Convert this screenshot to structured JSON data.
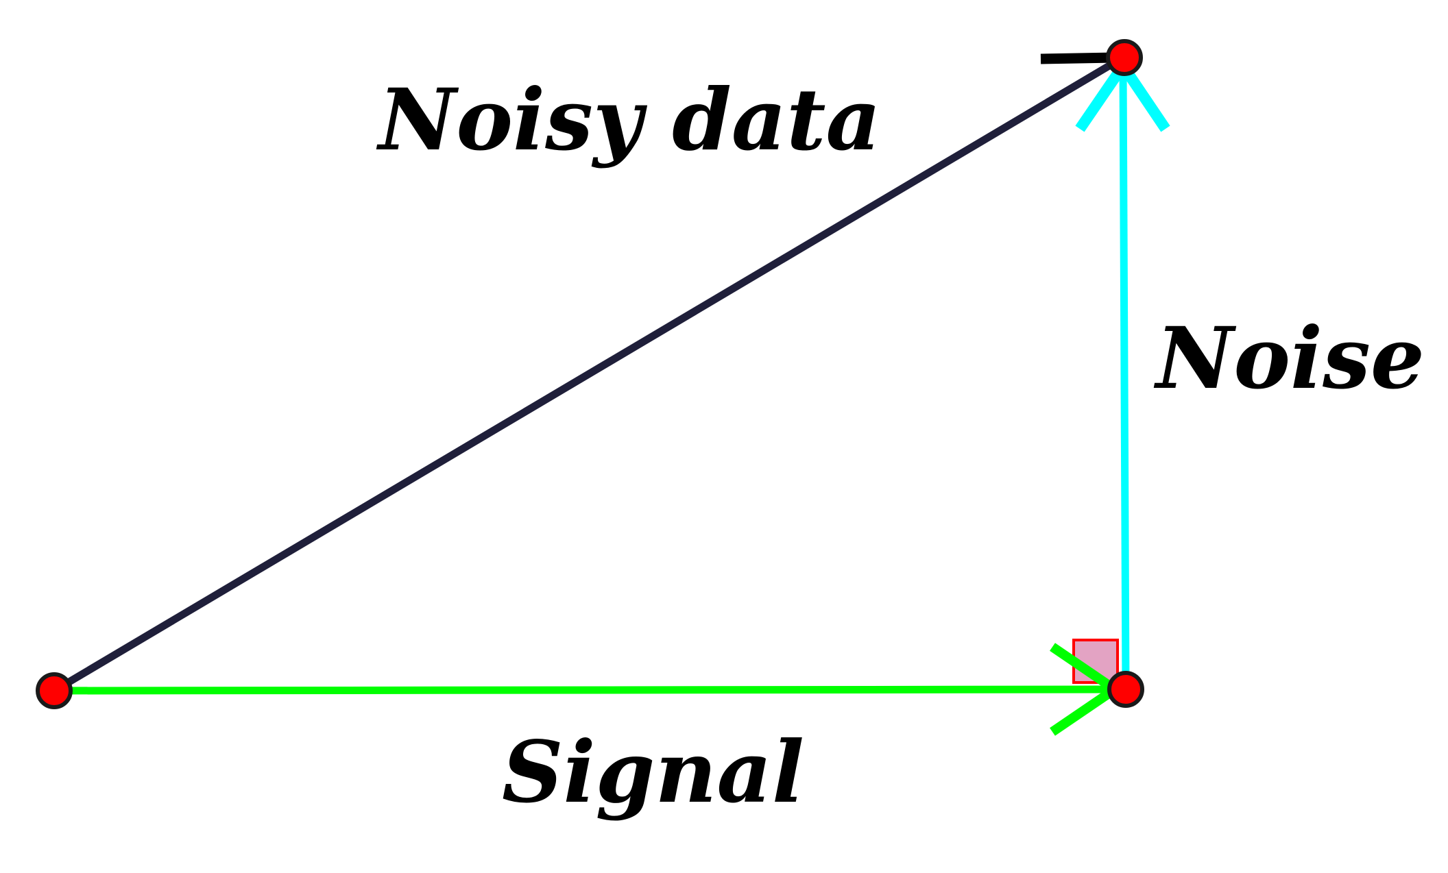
{
  "labels": {
    "noisy_data": "Noisy data",
    "noise": "Noise",
    "signal": "Signal"
  },
  "colors": {
    "background": "#ffffff",
    "noisy_data_vector": "#1f1f3a",
    "noise_vector": "#00ffff",
    "signal_vector": "#00ff00",
    "point_fill": "#ff0000",
    "point_stroke": "#1a1a1a",
    "right_angle_fill": "#e3a3c3",
    "right_angle_stroke": "#ff0000",
    "label_text": "#000000"
  },
  "points": [
    {
      "name": "origin"
    },
    {
      "name": "signal-end"
    },
    {
      "name": "noisy-data-end"
    }
  ],
  "vectors": [
    {
      "name": "signal",
      "from": "origin",
      "to": "signal-end"
    },
    {
      "name": "noise",
      "from": "signal-end",
      "to": "noisy-data-end"
    },
    {
      "name": "noisy-data",
      "from": "origin",
      "to": "noisy-data-end"
    }
  ],
  "right_angle_marker": {
    "at": "signal-end"
  }
}
